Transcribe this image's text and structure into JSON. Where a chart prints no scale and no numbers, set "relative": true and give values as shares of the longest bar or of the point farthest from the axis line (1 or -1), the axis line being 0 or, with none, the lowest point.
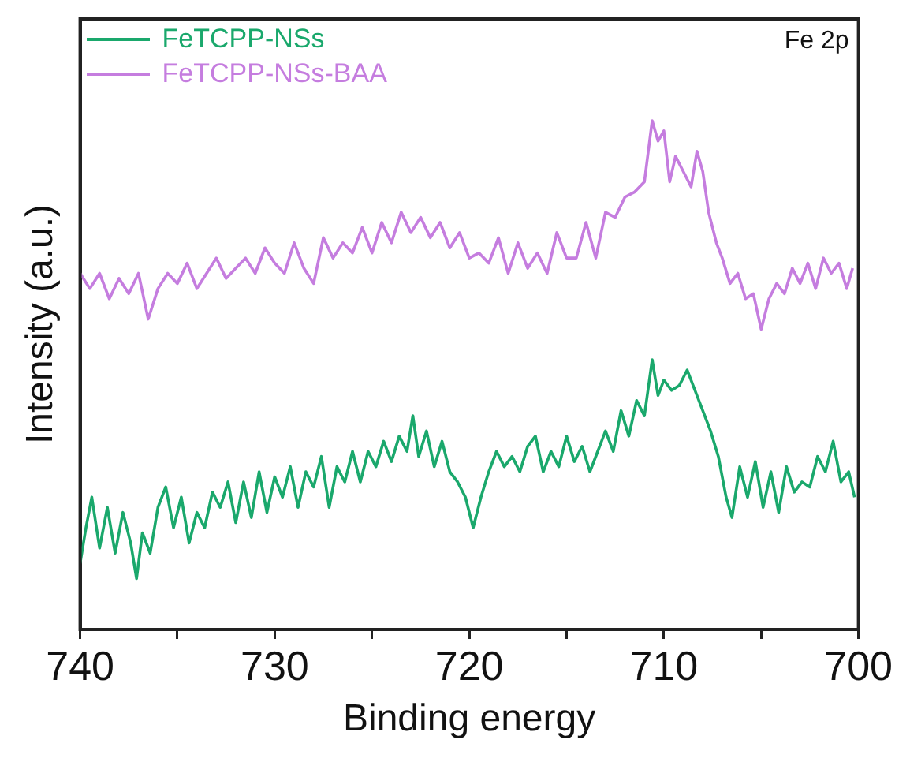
{
  "chart_data": {
    "type": "line",
    "relative": true,
    "xlabel": "Binding energy",
    "ylabel": "Intensity (a.u.)",
    "annotations": [
      "Fe 2p"
    ],
    "legend": "top left",
    "tick_labels": "x",
    "marker": "none",
    "xlim": [
      740,
      700
    ],
    "xticks": [
      740,
      {
        "value": 735,
        "label": null
      },
      730,
      {
        "value": 725,
        "label": null
      },
      720,
      {
        "value": 715,
        "label": null
      },
      710,
      {
        "value": 705,
        "label": null
      },
      700
    ],
    "series": [
      {
        "name": "FeTCPP-NSs",
        "color": "#1aa86c",
        "x": [
          740,
          739.7,
          739.4,
          739,
          738.6,
          738.2,
          737.8,
          737.4,
          737.1,
          736.8,
          736.4,
          736,
          735.6,
          735.2,
          734.8,
          734.4,
          734,
          733.6,
          733.2,
          732.8,
          732.4,
          732,
          731.6,
          731.2,
          730.8,
          730.4,
          730,
          729.6,
          729.2,
          728.8,
          728.4,
          728,
          727.6,
          727.2,
          726.8,
          726.4,
          726,
          725.6,
          725.2,
          724.8,
          724.4,
          724,
          723.6,
          723.2,
          722.9,
          722.6,
          722.2,
          721.8,
          721.4,
          721,
          720.6,
          720.2,
          719.8,
          719.4,
          719,
          718.6,
          718.2,
          717.8,
          717.4,
          717,
          716.6,
          716.2,
          715.8,
          715.4,
          715,
          714.6,
          714.2,
          713.8,
          713.4,
          713,
          712.6,
          712.2,
          711.8,
          711.4,
          711,
          710.6,
          710.3,
          710,
          709.6,
          709.2,
          708.8,
          708.4,
          708,
          707.6,
          707.2,
          706.8,
          706.5,
          706.1,
          705.7,
          705.3,
          704.9,
          704.5,
          704.1,
          703.7,
          703.3,
          702.9,
          702.5,
          702.1,
          701.7,
          701.3,
          700.9,
          700.5,
          700.2
        ],
        "values": [
          0.13,
          0.2,
          0.26,
          0.16,
          0.24,
          0.15,
          0.23,
          0.17,
          0.1,
          0.19,
          0.15,
          0.24,
          0.28,
          0.2,
          0.26,
          0.17,
          0.23,
          0.2,
          0.27,
          0.24,
          0.29,
          0.21,
          0.29,
          0.22,
          0.31,
          0.23,
          0.3,
          0.26,
          0.32,
          0.24,
          0.31,
          0.28,
          0.34,
          0.24,
          0.32,
          0.29,
          0.35,
          0.29,
          0.35,
          0.32,
          0.37,
          0.33,
          0.38,
          0.35,
          0.42,
          0.34,
          0.39,
          0.32,
          0.37,
          0.31,
          0.29,
          0.26,
          0.2,
          0.26,
          0.31,
          0.35,
          0.32,
          0.34,
          0.31,
          0.36,
          0.38,
          0.31,
          0.35,
          0.32,
          0.38,
          0.33,
          0.36,
          0.31,
          0.35,
          0.39,
          0.35,
          0.43,
          0.38,
          0.45,
          0.42,
          0.53,
          0.46,
          0.49,
          0.47,
          0.48,
          0.51,
          0.47,
          0.43,
          0.39,
          0.34,
          0.26,
          0.22,
          0.32,
          0.26,
          0.33,
          0.24,
          0.31,
          0.23,
          0.32,
          0.27,
          0.29,
          0.28,
          0.34,
          0.31,
          0.37,
          0.29,
          0.31,
          0.26
        ]
      },
      {
        "name": "FeTCPP-NSs-BAA",
        "color": "#c57ddf",
        "x": [
          740,
          739.5,
          739,
          738.5,
          738,
          737.5,
          737,
          736.5,
          736,
          735.5,
          735,
          734.5,
          734,
          733.5,
          733,
          732.5,
          732,
          731.5,
          731,
          730.5,
          730,
          729.5,
          729,
          728.5,
          728,
          727.5,
          727,
          726.5,
          726,
          725.5,
          725,
          724.5,
          724,
          723.5,
          723,
          722.5,
          722,
          721.5,
          721,
          720.5,
          720,
          719.5,
          719,
          718.5,
          718,
          717.5,
          717,
          716.5,
          716,
          715.5,
          715,
          714.5,
          714,
          713.5,
          713,
          712.5,
          712,
          711.5,
          711,
          710.6,
          710.3,
          710,
          709.7,
          709.4,
          709,
          708.6,
          708.3,
          708,
          707.7,
          707.3,
          707,
          706.6,
          706.2,
          705.8,
          705.4,
          705,
          704.6,
          704.2,
          703.8,
          703.4,
          703,
          702.6,
          702.2,
          701.8,
          701.4,
          701,
          700.6,
          700.3
        ],
        "values": [
          0.7,
          0.67,
          0.7,
          0.65,
          0.69,
          0.66,
          0.7,
          0.61,
          0.67,
          0.7,
          0.68,
          0.72,
          0.67,
          0.7,
          0.73,
          0.69,
          0.71,
          0.73,
          0.7,
          0.75,
          0.72,
          0.7,
          0.76,
          0.71,
          0.68,
          0.77,
          0.73,
          0.76,
          0.74,
          0.79,
          0.74,
          0.8,
          0.76,
          0.82,
          0.78,
          0.81,
          0.77,
          0.8,
          0.75,
          0.78,
          0.73,
          0.74,
          0.72,
          0.77,
          0.7,
          0.76,
          0.71,
          0.74,
          0.7,
          0.78,
          0.73,
          0.73,
          0.8,
          0.73,
          0.82,
          0.81,
          0.85,
          0.86,
          0.88,
          1,
          0.96,
          0.98,
          0.88,
          0.93,
          0.9,
          0.87,
          0.94,
          0.9,
          0.82,
          0.76,
          0.73,
          0.68,
          0.7,
          0.65,
          0.66,
          0.59,
          0.65,
          0.68,
          0.66,
          0.71,
          0.68,
          0.72,
          0.67,
          0.73,
          0.7,
          0.72,
          0.67,
          0.71
        ]
      }
    ]
  }
}
